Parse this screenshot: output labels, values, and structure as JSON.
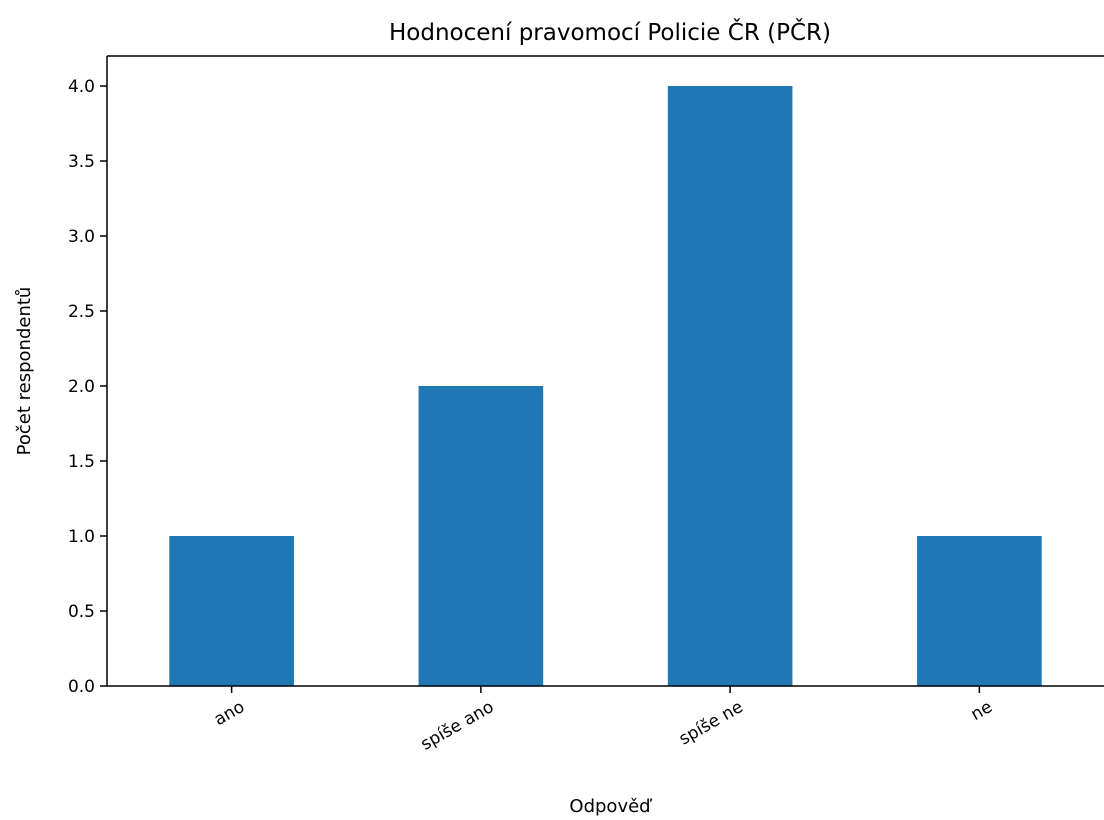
{
  "chart_data": {
    "type": "bar",
    "title": "Hodnocení pravomocí Policie ČR (PČR)",
    "xlabel": "Odpověď",
    "ylabel": "Počet respondentů",
    "categories": [
      "ano",
      "spíše ano",
      "spíše ne",
      "ne"
    ],
    "values": [
      1,
      2,
      4,
      1
    ],
    "ylim": [
      0,
      4.2
    ],
    "yticks": [
      "0.0",
      "0.5",
      "1.0",
      "1.5",
      "2.0",
      "2.5",
      "3.0",
      "3.5",
      "4.0"
    ],
    "bar_color": "#1f77b4",
    "grid": false,
    "legend": "none"
  }
}
